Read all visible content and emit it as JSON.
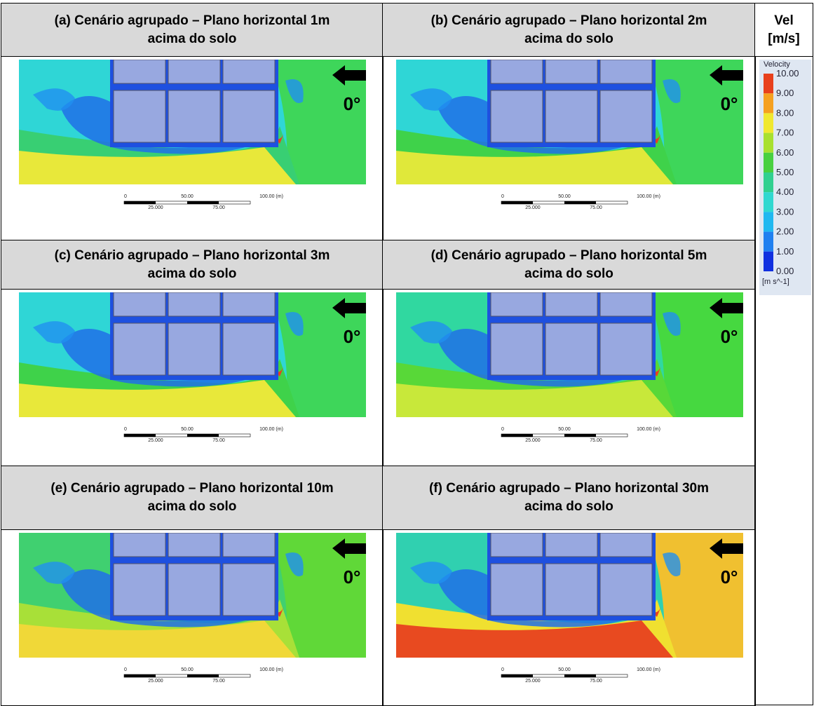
{
  "panels": [
    {
      "title": [
        "(a) Cenário agrupado – Plano horizontal 1m",
        "acima do solo"
      ],
      "angle": "0°",
      "scale": {
        "top": [
          "0",
          "50.00",
          "100.00 (m)"
        ],
        "bottom": [
          "25.000",
          "75.00"
        ]
      },
      "colors": {
        "top": "#2fd6d6",
        "mid": "#38cf73",
        "bottom": "#e8e83a",
        "right": "#3ed65a"
      }
    },
    {
      "title": [
        "(b) Cenário agrupado – Plano horizontal 2m",
        "acima do solo"
      ],
      "angle": "0°",
      "scale": {
        "top": [
          "0",
          "50.00",
          "100.00 (m)"
        ],
        "bottom": [
          "25.000",
          "75.00"
        ]
      },
      "colors": {
        "top": "#2fd6d6",
        "mid": "#3fd24a",
        "bottom": "#e0e83a",
        "right": "#3ed65a"
      }
    },
    {
      "title": [
        "(c) Cenário agrupado – Plano horizontal 3m",
        "acima do solo"
      ],
      "angle": "0°",
      "scale": {
        "top": [
          "0",
          "50.00",
          "100.00 (m)"
        ],
        "bottom": [
          "25.000",
          "75.00"
        ]
      },
      "colors": {
        "top": "#2fd6d6",
        "mid": "#3fd24a",
        "bottom": "#e8e83a",
        "right": "#3ed65a"
      }
    },
    {
      "title": [
        "(d) Cenário agrupado – Plano horizontal 5m",
        "acima do solo"
      ],
      "angle": "0°",
      "scale": {
        "top": [
          "0",
          "50.00",
          "100.00 (m)"
        ],
        "bottom": [
          "25.000",
          "75.00"
        ]
      },
      "colors": {
        "top": "#30d8a0",
        "mid": "#58d838",
        "bottom": "#c8e83a",
        "right": "#46d840"
      }
    },
    {
      "title": [
        "(e) Cenário agrupado – Plano horizontal 10m",
        "acima do solo"
      ],
      "angle": "0°",
      "scale": {
        "top": [
          "0",
          "50.00",
          "100.00 (m)"
        ],
        "bottom": [
          "25.000",
          "75.00"
        ]
      },
      "colors": {
        "top": "#40d070",
        "mid": "#a8e038",
        "bottom": "#f0d838",
        "right": "#60d838"
      }
    },
    {
      "title": [
        "(f) Cenário agrupado – Plano horizontal 30m",
        "acima do solo"
      ],
      "angle": "0°",
      "scale": {
        "top": [
          "0",
          "50.00",
          "100.00 (m)"
        ],
        "bottom": [
          "25.000",
          "75.00"
        ]
      },
      "colors": {
        "top": "#30d0b0",
        "mid": "#f0e030",
        "bottom": "#e84a20",
        "right": "#f0c030"
      }
    }
  ],
  "legend_header": [
    "Vel",
    "[m/s]"
  ],
  "legend": {
    "title": "Velocity",
    "ticks": [
      "10.00",
      "9.00",
      "8.00",
      "7.00",
      "6.00",
      "5.00",
      "4.00",
      "3.00",
      "2.00",
      "1.00",
      "0.00"
    ],
    "unit": "[m s^-1]",
    "colors": [
      "#e8401c",
      "#f5a020",
      "#f0e830",
      "#a8e030",
      "#48d040",
      "#30d090",
      "#30d8d0",
      "#20b8f0",
      "#2080f0",
      "#1030e0"
    ]
  }
}
